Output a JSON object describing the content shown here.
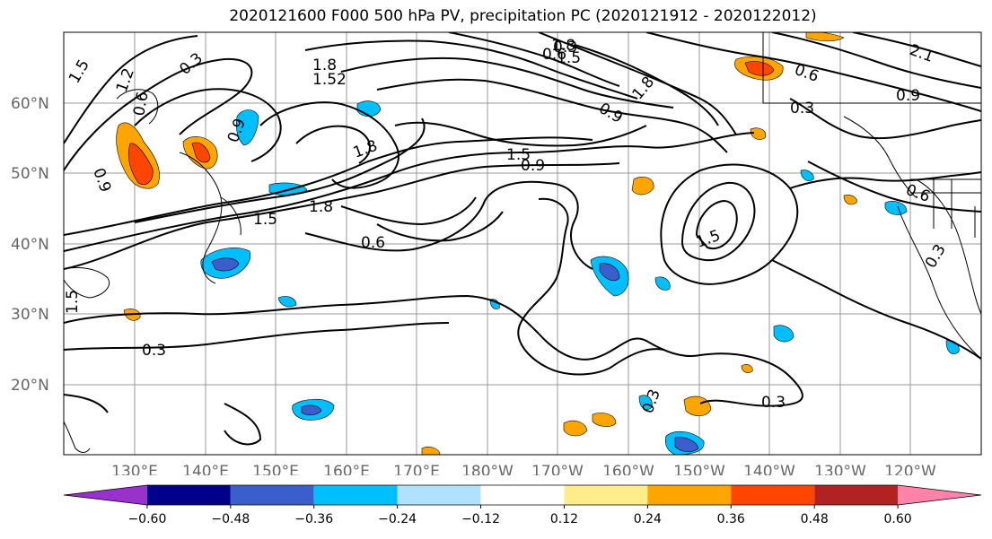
{
  "title": "2020121600 F000 500 hPa PV, precipitation PC (2020121912 - 2020122012)",
  "lat_labels": [
    "60°N",
    "50°N",
    "40°N",
    "30°N",
    "20°N"
  ],
  "lon_labels": [
    "130°E",
    "140°E",
    "150°E",
    "160°E",
    "170°E",
    "180°W",
    "170°W",
    "160°W",
    "150°W",
    "140°W",
    "130°W",
    "120°W"
  ],
  "contour_labels": [
    "1.5",
    "1.2",
    "0.3",
    "1.8",
    "1.52",
    "1.8",
    "0.6",
    "0.9",
    "0.9",
    "1.5",
    "0.6",
    "1.8",
    "1.5",
    "0.6",
    "0.3",
    "1.8",
    "1.5",
    "1.8",
    "0.9",
    "1.5",
    "0.9",
    "0.6",
    "0.3",
    "0.9",
    "0.6",
    "0.3",
    "0.3",
    "0.3",
    "1.5",
    "0.3",
    "2.1"
  ],
  "colorbar": {
    "colors": [
      "#9932cc",
      "#00008b",
      "#3a5fcd",
      "#00bfff",
      "#b0e2ff",
      "#ffffff",
      "#ffec8b",
      "#ffa500",
      "#ff4500",
      "#b22222",
      "#ff82ab"
    ],
    "ticks": [
      "−0.60",
      "−0.48",
      "−0.36",
      "−0.24",
      "−0.12",
      "0.12",
      "0.24",
      "0.36",
      "0.48",
      "0.60"
    ]
  },
  "legend_colors": {
    "neg_strong": "#3a5fcd",
    "neg_mid": "#00bfff",
    "neg_light": "#b0e2ff",
    "pos_light": "#ffec8b",
    "pos_mid": "#ffa500",
    "pos_strong": "#ff4500"
  }
}
